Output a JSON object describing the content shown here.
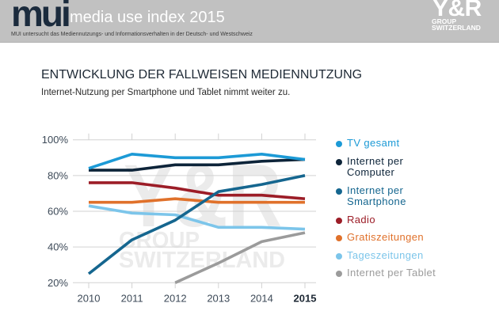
{
  "header": {
    "logo_text": "mui",
    "title": "media use index 2015",
    "subtitle": "MUI untersucht das Mediennutzungs- und Informationsverhalten in der Deutsch- und Westschweiz",
    "brand": {
      "main": "Y&R",
      "line1": "GROUP",
      "line2": "SWITZERLAND"
    }
  },
  "page": {
    "title": "ENTWICKLUNG DER FALLWEISEN MEDIENNUTZUNG",
    "subtitle": "Internet-Nutzung per Smartphone und Tablet nimmt weiter zu."
  },
  "watermark": {
    "main": "Y&R",
    "line1": "GROUP",
    "line2": "SWITZERLAND"
  },
  "chart_data": {
    "type": "line",
    "title": "ENTWICKLUNG DER FALLWEISEN MEDIENNUTZUNG",
    "subtitle": "Internet-Nutzung per Smartphone und Tablet nimmt weiter zu.",
    "xlabel": "",
    "ylabel": "",
    "x": [
      2010,
      2011,
      2012,
      2013,
      2014,
      2015
    ],
    "x_tick_labels": [
      "2010",
      "2011",
      "2012",
      "2013",
      "2014",
      "2015"
    ],
    "highlighted_x_label": "2015",
    "y_ticks": [
      100,
      80,
      60,
      40,
      20
    ],
    "y_tick_labels": [
      "100%",
      "80%",
      "60%",
      "40%",
      "20%"
    ],
    "ylim": [
      20,
      100
    ],
    "grid": "horizontal",
    "legend_position": "right",
    "series": [
      {
        "name": "TV gesamt",
        "label_lines": [
          "TV gesamt"
        ],
        "color": "#1c9ad6",
        "values": [
          84,
          92,
          90,
          90,
          92,
          89
        ]
      },
      {
        "name": "Internet per Computer",
        "label_lines": [
          "Internet per",
          "Computer"
        ],
        "color": "#0d2439",
        "values": [
          83,
          83,
          86,
          86,
          88,
          89
        ]
      },
      {
        "name": "Internet per Smartphone",
        "label_lines": [
          "Internet per",
          "Smartphone"
        ],
        "color": "#15668f",
        "values": [
          25,
          44,
          55,
          71,
          75,
          80
        ]
      },
      {
        "name": "Radio",
        "label_lines": [
          "Radio"
        ],
        "color": "#9c1d27",
        "values": [
          76,
          76,
          73,
          69,
          69,
          67
        ]
      },
      {
        "name": "Gratiszeitungen",
        "label_lines": [
          "Gratiszeitungen"
        ],
        "color": "#e0712b",
        "values": [
          65,
          65,
          67,
          65,
          65,
          65
        ]
      },
      {
        "name": "Tageszeitungen",
        "label_lines": [
          "Tageszeitungen"
        ],
        "color": "#7cc5ea",
        "values": [
          63,
          59,
          58,
          51,
          51,
          50
        ]
      },
      {
        "name": "Internet per Tablet",
        "label_lines": [
          "Internet per Tablet"
        ],
        "color": "#9b9b9b",
        "values": [
          null,
          null,
          20,
          31,
          43,
          48
        ]
      }
    ]
  }
}
